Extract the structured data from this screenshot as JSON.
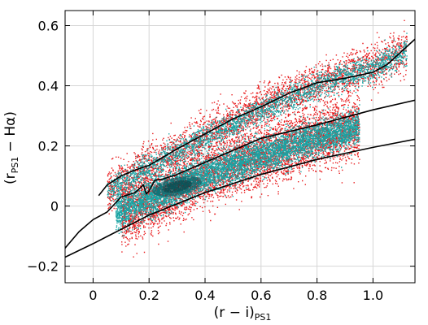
{
  "chart_data": {
    "type": "scatter",
    "title": "",
    "xlabel": {
      "main": "(r − i)",
      "sub": "PS1"
    },
    "ylabel": {
      "main": "(r",
      "sub": "PS1",
      "tail": " − Hα)"
    },
    "xlim": [
      -0.1,
      1.15
    ],
    "ylim": [
      -0.255,
      0.65
    ],
    "x_ticks": [
      0,
      0.2,
      0.4,
      0.6,
      0.8,
      1.0
    ],
    "x_tick_labels": [
      "0",
      "0.2",
      "0.4",
      "0.6",
      "0.8",
      "1.0"
    ],
    "y_ticks": [
      -0.2,
      0,
      0.2,
      0.4,
      0.6
    ],
    "y_tick_labels": [
      "−0.2",
      "0",
      "0.2",
      "0.4",
      "0.6"
    ],
    "grid": true,
    "legend": "none",
    "colors": {
      "outer_points": "#e8191b",
      "inner_points": "#1aa3a3",
      "dense_core": "#0b4f55",
      "lines": "#000000"
    },
    "point_populations": [
      {
        "color_key": "outer_points",
        "branches": [
          {
            "x_range": [
              0.05,
              1.12
            ],
            "center": [
              [
                0.05,
                0.05
              ],
              [
                0.2,
                0.135
              ],
              [
                0.4,
                0.24
              ],
              [
                0.6,
                0.33
              ],
              [
                0.8,
                0.41
              ],
              [
                1.0,
                0.47
              ],
              [
                1.12,
                0.52
              ]
            ],
            "spread": 0.035,
            "weight": 0.35
          },
          {
            "x_range": [
              0.1,
              0.95
            ],
            "center": [
              [
                0.1,
                -0.03
              ],
              [
                0.3,
                0.06
              ],
              [
                0.5,
                0.14
              ],
              [
                0.7,
                0.2
              ],
              [
                0.95,
                0.27
              ]
            ],
            "spread": 0.05,
            "weight": 0.65
          }
        ]
      },
      {
        "color_key": "inner_points",
        "branches": [
          {
            "x_range": [
              0.05,
              1.12
            ],
            "center": [
              [
                0.05,
                0.05
              ],
              [
                0.2,
                0.13
              ],
              [
                0.4,
                0.23
              ],
              [
                0.6,
                0.32
              ],
              [
                0.8,
                0.4
              ],
              [
                1.0,
                0.46
              ],
              [
                1.12,
                0.515
              ]
            ],
            "spread": 0.022,
            "weight": 0.3
          },
          {
            "x_range": [
              0.08,
              0.95
            ],
            "center": [
              [
                0.08,
                -0.02
              ],
              [
                0.3,
                0.065
              ],
              [
                0.5,
                0.14
              ],
              [
                0.7,
                0.2
              ],
              [
                0.95,
                0.265
              ]
            ],
            "spread": 0.03,
            "weight": 0.7
          }
        ]
      }
    ],
    "dense_core": {
      "x": 0.3,
      "y": 0.065,
      "rx": 0.09,
      "ry": 0.03
    },
    "lines": [
      {
        "name": "",
        "x": [
          -0.1,
          0.0,
          0.2,
          0.4,
          0.6,
          0.8,
          1.0,
          1.15
        ],
        "y": [
          -0.17,
          -0.125,
          -0.03,
          0.045,
          0.105,
          0.155,
          0.195,
          0.222
        ]
      },
      {
        "name": "",
        "x": [
          0.02,
          0.05,
          0.1,
          0.15,
          0.2,
          0.3,
          0.4,
          0.5,
          0.6,
          0.7,
          0.8,
          0.9,
          1.0,
          1.05,
          1.15
        ],
        "y": [
          0.035,
          0.07,
          0.1,
          0.12,
          0.135,
          0.19,
          0.24,
          0.29,
          0.33,
          0.375,
          0.41,
          0.425,
          0.445,
          0.47,
          0.555
        ]
      },
      {
        "name": "",
        "x": [
          -0.1,
          -0.05,
          0.0,
          0.05,
          0.1,
          0.15,
          0.18,
          0.19,
          0.2,
          0.22,
          0.25,
          0.3,
          0.4,
          0.6,
          0.8,
          1.0,
          1.15
        ],
        "y": [
          -0.14,
          -0.085,
          -0.045,
          -0.02,
          0.03,
          0.045,
          0.07,
          0.04,
          0.05,
          0.085,
          0.09,
          0.105,
          0.145,
          0.225,
          0.27,
          0.32,
          0.352
        ]
      }
    ]
  }
}
